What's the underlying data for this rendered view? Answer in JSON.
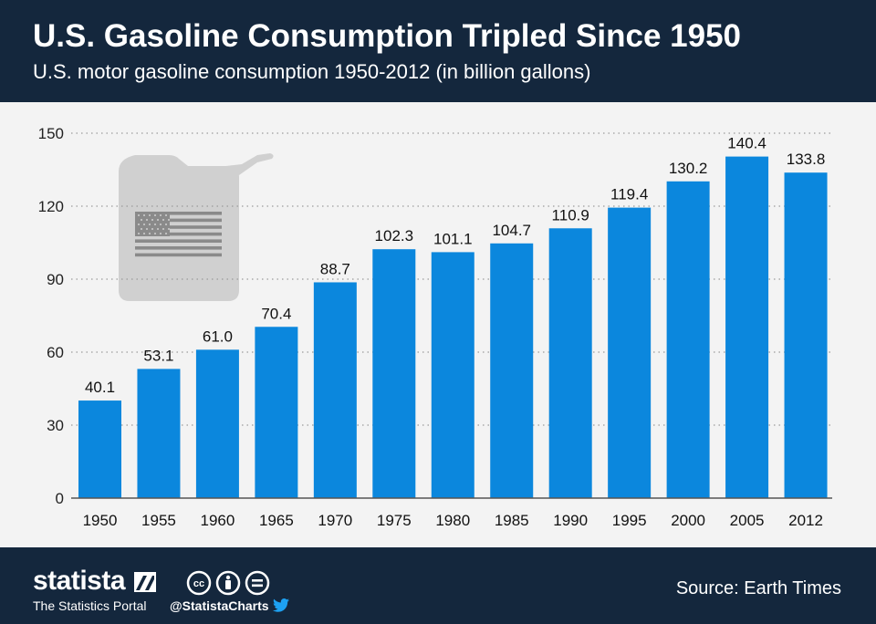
{
  "header": {
    "title": "U.S. Gasoline Consumption Tripled Since 1950",
    "subtitle": "U.S. motor gasoline consumption 1950-2012 (in billion gallons)"
  },
  "chart_data": {
    "type": "bar",
    "categories": [
      "1950",
      "1955",
      "1960",
      "1965",
      "1970",
      "1975",
      "1980",
      "1985",
      "1990",
      "1995",
      "2000",
      "2005",
      "2012"
    ],
    "values": [
      40.1,
      53.1,
      61.0,
      70.4,
      88.7,
      102.3,
      101.1,
      104.7,
      110.9,
      119.4,
      130.2,
      140.4,
      133.8
    ],
    "value_labels": [
      "40.1",
      "53.1",
      "61.0",
      "70.4",
      "88.7",
      "102.3",
      "101.1",
      "104.7",
      "110.9",
      "119.4",
      "130.2",
      "140.4",
      "133.8"
    ],
    "title": "U.S. Gasoline Consumption Tripled Since 1950",
    "subtitle": "U.S. motor gasoline consumption 1950-2012 (in billion gallons)",
    "xlabel": "",
    "ylabel": "",
    "ylim": [
      0,
      150
    ],
    "yticks": [
      0,
      30,
      60,
      90,
      120,
      150
    ],
    "grid": "horizontal dotted",
    "bar_color": "#0b87dd"
  },
  "colors": {
    "header_bg": "#14273d",
    "plot_bg": "#f3f3f3",
    "bar": "#0b87dd",
    "illustration": "#d0d0d0",
    "flag": "#8a8a8a"
  },
  "illustration": {
    "icon": "gas-canister-with-us-flag-icon"
  },
  "footer": {
    "brand": "statista",
    "tagline": "The Statistics Portal",
    "handle": "@StatistaCharts",
    "source": "Source: Earth Times",
    "icons": [
      "creative-commons-icon",
      "attribution-icon",
      "no-derivatives-icon",
      "twitter-icon"
    ]
  }
}
